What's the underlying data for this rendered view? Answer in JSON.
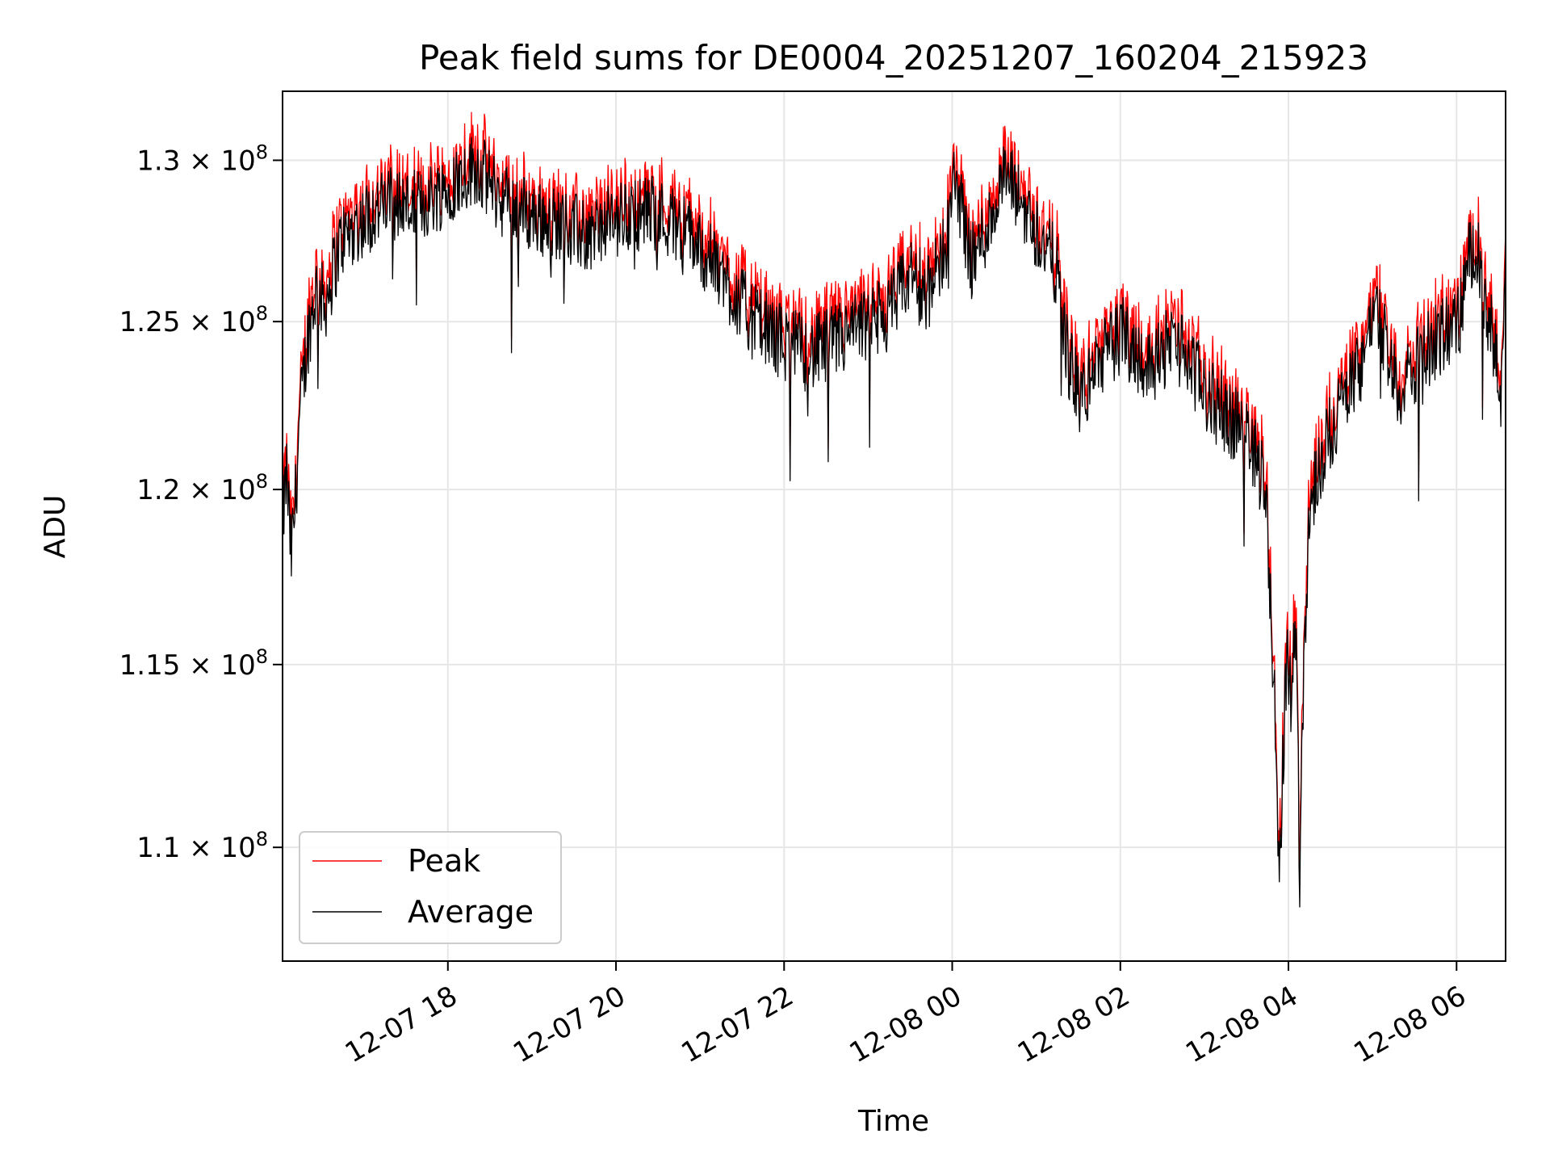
{
  "chart_data": {
    "type": "line",
    "title": "Peak field sums for DE0004_20251207_160204_215923",
    "xlabel": "Time",
    "ylabel": "ADU",
    "x_start": "2025-12-07 16:02",
    "x_end": "2025-12-08 06:35",
    "xlim_hours_from_start": [
      0,
      14.55
    ],
    "ylim": [
      107000000,
      132200000
    ],
    "y_scale": "log",
    "grid": true,
    "legend_position": "lower-left",
    "x_ticks": [
      {
        "label": "12-07 18",
        "hours": 1.9667
      },
      {
        "label": "12-07 20",
        "hours": 3.9667
      },
      {
        "label": "12-07 22",
        "hours": 5.9667
      },
      {
        "label": "12-08 00",
        "hours": 7.9667
      },
      {
        "label": "12-08 02",
        "hours": 9.9667
      },
      {
        "label": "12-08 04",
        "hours": 11.9667
      },
      {
        "label": "12-08 06",
        "hours": 13.9667
      }
    ],
    "y_ticks": [
      {
        "label": "1.1",
        "value": 110000000
      },
      {
        "label": "1.15",
        "value": 115000000
      },
      {
        "label": "1.2",
        "value": 120000000
      },
      {
        "label": "1.25",
        "value": 125000000
      },
      {
        "label": "1.3",
        "value": 130000000
      }
    ],
    "y_tick_suffix": "× 10",
    "y_tick_exponent": "8",
    "series": [
      {
        "name": "Peak",
        "color": "#ff0000",
        "offset_above_average": 600000
      },
      {
        "name": "Average",
        "color": "#000000",
        "x_hours": [
          0.0,
          0.05,
          0.1,
          0.15,
          0.2,
          0.3,
          0.4,
          0.5,
          0.7,
          1.0,
          1.3,
          1.6,
          2.0,
          2.3,
          2.6,
          3.0,
          3.3,
          3.6,
          4.0,
          4.4,
          4.8,
          5.2,
          5.6,
          6.0,
          6.3,
          6.6,
          6.9,
          7.2,
          7.5,
          7.7,
          7.9,
          8.0,
          8.2,
          8.4,
          8.6,
          8.8,
          9.0,
          9.2,
          9.35,
          9.5,
          9.7,
          10.0,
          10.3,
          10.6,
          10.85,
          11.0,
          11.2,
          11.4,
          11.55,
          11.7,
          11.8,
          11.85,
          11.9,
          11.95,
          12.0,
          12.05,
          12.1,
          12.15,
          12.2,
          12.25,
          12.3,
          12.4,
          12.6,
          12.8,
          13.0,
          13.2,
          13.3,
          13.5,
          13.8,
          14.0,
          14.1,
          14.2,
          14.3,
          14.4,
          14.5,
          14.55
        ],
        "values": [
          119000000,
          120500000,
          118000000,
          119500000,
          122000000,
          124500000,
          126000000,
          125500000,
          127500000,
          128200000,
          128700000,
          128500000,
          129200000,
          129800000,
          128800000,
          128200000,
          128000000,
          127600000,
          128200000,
          128400000,
          127800000,
          126500000,
          125000000,
          124300000,
          124000000,
          124400000,
          124800000,
          125200000,
          126500000,
          125800000,
          127500000,
          129500000,
          126800000,
          128000000,
          129500000,
          128600000,
          127600000,
          126700000,
          123800000,
          122600000,
          123800000,
          124600000,
          123600000,
          124500000,
          123500000,
          122700000,
          122300000,
          121700000,
          121200000,
          120000000,
          114000000,
          109000000,
          112000000,
          115500000,
          114000000,
          116500000,
          109500000,
          115000000,
          118500000,
          119800000,
          120300000,
          121300000,
          122500000,
          123500000,
          125500000,
          123700000,
          122800000,
          123800000,
          124600000,
          125000000,
          126800000,
          127500000,
          125200000,
          124500000,
          122500000,
          127600000
        ],
        "noise_amplitude": 1200000
      }
    ]
  }
}
